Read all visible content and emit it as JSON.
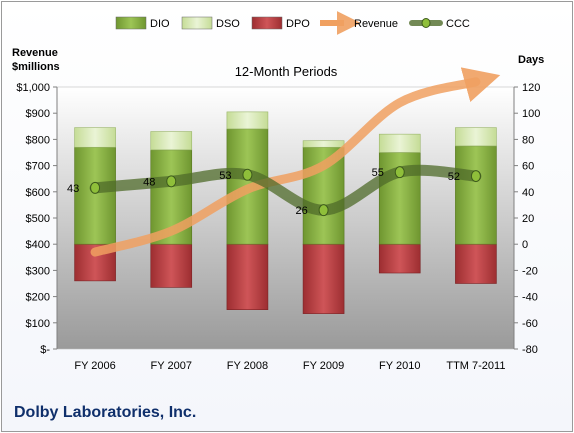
{
  "chart_data": {
    "type": "bar",
    "title": "12-Month Periods",
    "categories": [
      "FY 2006",
      "FY 2007",
      "FY 2008",
      "FY 2009",
      "FY 2010",
      "TTM 7-2011"
    ],
    "left_axis": {
      "label_line1": "Revenue",
      "label_line2": "$millions",
      "ylim": [
        0,
        1000
      ],
      "ticks": [
        0,
        100,
        200,
        300,
        400,
        500,
        600,
        700,
        800,
        900,
        1000
      ],
      "tick_labels": [
        "$-",
        "$100",
        "$200",
        "$300",
        "$400",
        "$500",
        "$600",
        "$700",
        "$800",
        "$900",
        "$1,000"
      ]
    },
    "right_axis": {
      "label": "Days",
      "ylim": [
        -80,
        120
      ],
      "ticks": [
        -80,
        -60,
        -40,
        -20,
        0,
        20,
        40,
        60,
        80,
        100,
        120
      ],
      "tick_labels": [
        "-80",
        "-60",
        "-40",
        "-20",
        "0",
        "20",
        "40",
        "60",
        "80",
        "100",
        "120"
      ]
    },
    "series": [
      {
        "name": "DIO",
        "axis": "days",
        "values": [
          74,
          72,
          88,
          74,
          70,
          75
        ]
      },
      {
        "name": "DSO",
        "axis": "days",
        "values": [
          15,
          14,
          13,
          5,
          14,
          14
        ]
      },
      {
        "name": "DPO",
        "axis": "days",
        "values": [
          -28,
          -33,
          -50,
          -53,
          -22,
          -30
        ]
      },
      {
        "name": "Revenue",
        "axis": "revenue",
        "values": [
          370,
          450,
          610,
          700,
          940,
          1020
        ]
      },
      {
        "name": "CCC",
        "axis": "days",
        "values": [
          43,
          48,
          53,
          26,
          55,
          52
        ]
      }
    ],
    "ccc_data_labels": [
      "43",
      "48",
      "53",
      "26",
      "55",
      "52"
    ],
    "legend_position": "top",
    "grid": false,
    "colors": {
      "DIO": "#7ea73c",
      "DSO": "#d6e8b2",
      "DPO": "#b5393c",
      "Revenue": "#f0a060",
      "CCC": "#4f6b2a"
    }
  },
  "footer": {
    "company": "Dolby Laboratories, Inc."
  }
}
